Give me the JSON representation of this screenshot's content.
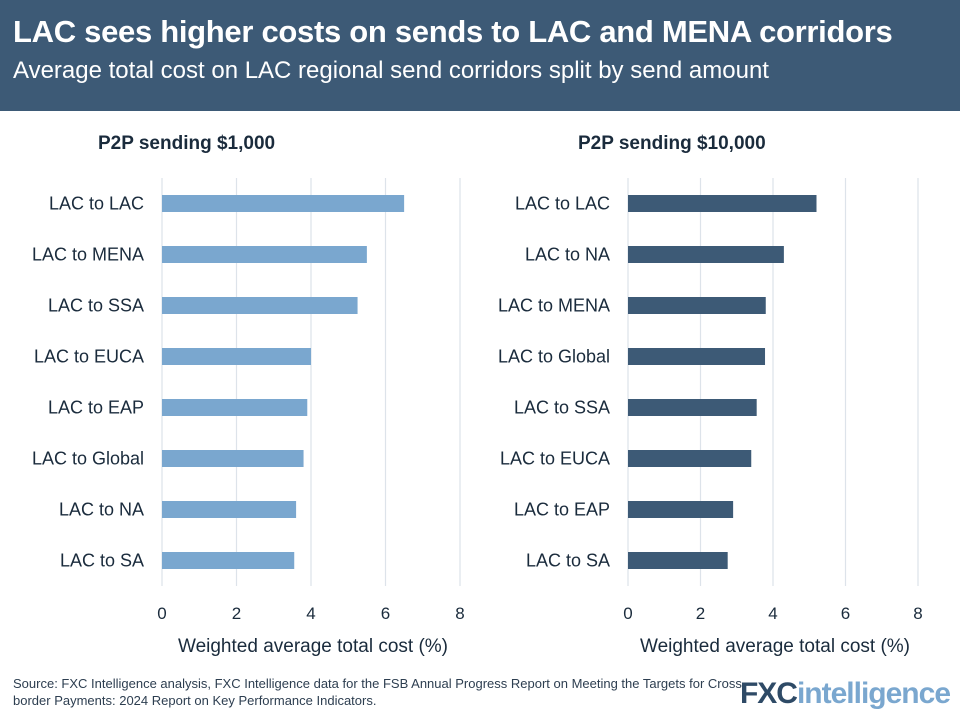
{
  "header": {
    "title": "LAC sees higher costs on sends to LAC and MENA corridors",
    "subtitle": "Average total cost on LAC regional send corridors split by send amount"
  },
  "chart_data": [
    {
      "type": "bar",
      "orientation": "horizontal",
      "title": "P2P sending $1,000",
      "categories": [
        "LAC to LAC",
        "LAC to MENA",
        "LAC to SSA",
        "LAC to EUCA",
        "LAC to EAP",
        "LAC  to Global",
        "LAC to NA",
        "LAC to SA"
      ],
      "values": [
        6.5,
        5.5,
        5.25,
        4.0,
        3.9,
        3.8,
        3.6,
        3.55
      ],
      "xlabel": "Weighted average total cost (%)",
      "ylabel": "",
      "xlim": [
        0,
        8
      ],
      "xticks": [
        "0",
        "2",
        "4",
        "6",
        "8"
      ],
      "grid": true,
      "color": "#7aa7cf"
    },
    {
      "type": "bar",
      "orientation": "horizontal",
      "title": "P2P sending $10,000",
      "categories": [
        "LAC to LAC",
        "LAC to NA",
        "LAC to MENA",
        "LAC to Global",
        "LAC to SSA",
        "LAC to EUCA",
        "LAC to EAP",
        "LAC to SA"
      ],
      "values": [
        5.2,
        4.3,
        3.8,
        3.78,
        3.55,
        3.4,
        2.9,
        2.75
      ],
      "xlabel": "Weighted average total cost (%)",
      "ylabel": "",
      "xlim": [
        0,
        8
      ],
      "xticks": [
        "0",
        "2",
        "4",
        "6",
        "8"
      ],
      "grid": true,
      "color": "#3d5a76"
    }
  ],
  "footer": {
    "source": "Source: FXC Intelligence analysis, FXC Intelligence data for the FSB Annual Progress Report on Meeting the Targets for Cross-border Payments: 2024 Report on Key Performance Indicators.",
    "logo_fxc": "FXC",
    "logo_intelligence": "intelligence"
  }
}
